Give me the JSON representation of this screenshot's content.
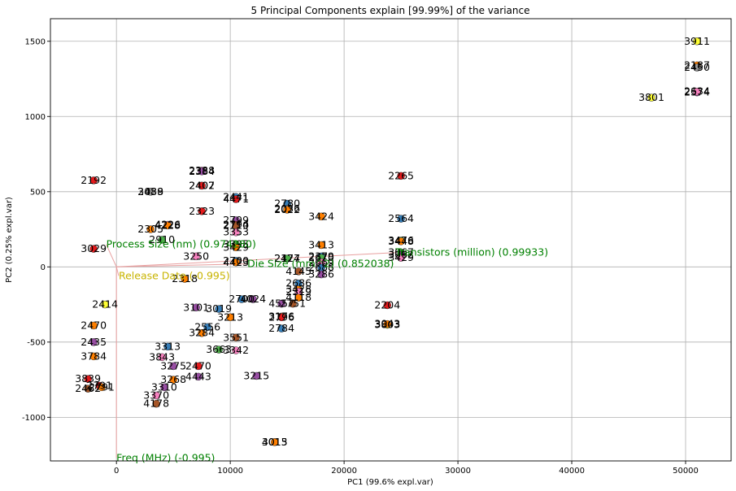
{
  "chart_data": {
    "type": "scatter",
    "title": "5 Principal Components explain [99.99%] of the variance",
    "xlabel": "PC1 (99.6% expl.var)",
    "ylabel": "PC2 (0.25% expl.var)",
    "xlim": [
      -5800,
      54000
    ],
    "ylim": [
      -1290,
      1650
    ],
    "xticks": [
      0,
      10000,
      20000,
      30000,
      40000,
      50000
    ],
    "yticks": [
      -1000,
      -500,
      0,
      500,
      1000,
      1500
    ],
    "grid": true,
    "legend": "none",
    "colors": {
      "red": "#e41a1c",
      "blue": "#377eb8",
      "green": "#4daf4a",
      "purple": "#984ea3",
      "orange": "#ff7f00",
      "yellow": "#ffff33",
      "brown": "#a65628",
      "pink": "#f781bf",
      "gray": "#999999",
      "vector": "#e8a0a0",
      "vector_label_green": "#008000",
      "vector_label_yellow": "#c8b400"
    },
    "points": [
      {
        "x": 51000,
        "y": 1500,
        "label": "3911",
        "color": "yellow"
      },
      {
        "x": 51000,
        "y": 1340,
        "label": "2187",
        "color": "orange"
      },
      {
        "x": 51000,
        "y": 1325,
        "label": "2450",
        "color": "gray"
      },
      {
        "x": 47000,
        "y": 1125,
        "label": "3801",
        "color": "yellow"
      },
      {
        "x": 51000,
        "y": 1160,
        "label": "2574",
        "color": "purple"
      },
      {
        "x": 51000,
        "y": 1165,
        "label": "2634",
        "color": "pink"
      },
      {
        "x": 25000,
        "y": 605,
        "label": "2265",
        "color": "red"
      },
      {
        "x": 25000,
        "y": 320,
        "label": "2564",
        "color": "blue"
      },
      {
        "x": 25000,
        "y": 175,
        "label": "3476",
        "color": "green"
      },
      {
        "x": 25000,
        "y": 170,
        "label": "3448",
        "color": "orange"
      },
      {
        "x": 25000,
        "y": 95,
        "label": "3067",
        "color": "green"
      },
      {
        "x": 25000,
        "y": 80,
        "label": "3062",
        "color": "purple"
      },
      {
        "x": 25000,
        "y": 60,
        "label": "3429",
        "color": "pink"
      },
      {
        "x": 23800,
        "y": -255,
        "label": "2204",
        "color": "red"
      },
      {
        "x": 23800,
        "y": -385,
        "label": "3803",
        "color": "yellow"
      },
      {
        "x": 23800,
        "y": -380,
        "label": "3043",
        "color": "orange"
      },
      {
        "x": 18000,
        "y": 335,
        "label": "3424",
        "color": "orange"
      },
      {
        "x": 18000,
        "y": 145,
        "label": "3413",
        "color": "orange"
      },
      {
        "x": 18000,
        "y": 70,
        "label": "2379",
        "color": "blue"
      },
      {
        "x": 18000,
        "y": 60,
        "label": "2670",
        "color": "green"
      },
      {
        "x": 18000,
        "y": 30,
        "label": "2669",
        "color": "pink"
      },
      {
        "x": 18000,
        "y": -5,
        "label": "2688",
        "color": "blue"
      },
      {
        "x": 18000,
        "y": -50,
        "label": "3286",
        "color": "purple"
      },
      {
        "x": 15000,
        "y": 420,
        "label": "2780",
        "color": "blue"
      },
      {
        "x": 15000,
        "y": 385,
        "label": "2036",
        "color": "gray"
      },
      {
        "x": 15000,
        "y": 380,
        "label": "2022",
        "color": "orange"
      },
      {
        "x": 15000,
        "y": 55,
        "label": "2127",
        "color": "blue"
      },
      {
        "x": 15000,
        "y": 55,
        "label": "2474",
        "color": "green"
      },
      {
        "x": 16000,
        "y": -30,
        "label": "4145",
        "color": "brown"
      },
      {
        "x": 16000,
        "y": -110,
        "label": "2686",
        "color": "blue"
      },
      {
        "x": 16000,
        "y": -150,
        "label": "3428",
        "color": "orange"
      },
      {
        "x": 16000,
        "y": -165,
        "label": "2319",
        "color": "pink"
      },
      {
        "x": 16000,
        "y": -205,
        "label": "4118",
        "color": "orange"
      },
      {
        "x": 15500,
        "y": -245,
        "label": "2751",
        "color": "brown"
      },
      {
        "x": 14500,
        "y": -245,
        "label": "4557",
        "color": "purple"
      },
      {
        "x": 14500,
        "y": -330,
        "label": "3176",
        "color": "brown"
      },
      {
        "x": 14500,
        "y": -335,
        "label": "2796",
        "color": "red"
      },
      {
        "x": 14500,
        "y": -410,
        "label": "2784",
        "color": "blue"
      },
      {
        "x": 12300,
        "y": -725,
        "label": "3215",
        "color": "purple"
      },
      {
        "x": 13900,
        "y": -1165,
        "label": "4015",
        "color": "brown"
      },
      {
        "x": 13900,
        "y": -1165,
        "label": "3013",
        "color": "orange"
      },
      {
        "x": 10500,
        "y": 465,
        "label": "2441",
        "color": "blue"
      },
      {
        "x": 10500,
        "y": 450,
        "label": "4471",
        "color": "red"
      },
      {
        "x": 10500,
        "y": 310,
        "label": "2799",
        "color": "purple"
      },
      {
        "x": 10500,
        "y": 280,
        "label": "2794",
        "color": "red"
      },
      {
        "x": 10500,
        "y": 275,
        "label": "2710",
        "color": "brown"
      },
      {
        "x": 10500,
        "y": 230,
        "label": "3353",
        "color": "pink"
      },
      {
        "x": 10500,
        "y": 150,
        "label": "3395",
        "color": "green"
      },
      {
        "x": 10500,
        "y": 130,
        "label": "3429",
        "color": "orange"
      },
      {
        "x": 10500,
        "y": 40,
        "label": "2700",
        "color": "blue"
      },
      {
        "x": 10500,
        "y": 30,
        "label": "4423",
        "color": "orange"
      },
      {
        "x": 7500,
        "y": 640,
        "label": "2388",
        "color": "pink"
      },
      {
        "x": 7500,
        "y": 635,
        "label": "2384",
        "color": "purple"
      },
      {
        "x": 7500,
        "y": 540,
        "label": "2402",
        "color": "gray"
      },
      {
        "x": 7500,
        "y": 540,
        "label": "2407",
        "color": "red"
      },
      {
        "x": 7500,
        "y": 370,
        "label": "2323",
        "color": "red"
      },
      {
        "x": 3000,
        "y": 500,
        "label": "3438",
        "color": "orange"
      },
      {
        "x": 3000,
        "y": 500,
        "label": "2089",
        "color": "gray"
      },
      {
        "x": 4500,
        "y": 280,
        "label": "4226",
        "color": "pink"
      },
      {
        "x": 4500,
        "y": 275,
        "label": "4228",
        "color": "orange"
      },
      {
        "x": 4000,
        "y": 180,
        "label": "2910",
        "color": "green"
      },
      {
        "x": 3000,
        "y": 250,
        "label": "2305",
        "color": "orange"
      },
      {
        "x": -2000,
        "y": 575,
        "label": "2192",
        "color": "red"
      },
      {
        "x": 11000,
        "y": -215,
        "label": "2700",
        "color": "blue"
      },
      {
        "x": 12000,
        "y": -215,
        "label": "4024",
        "color": "purple"
      },
      {
        "x": 10000,
        "y": -335,
        "label": "3213",
        "color": "orange"
      },
      {
        "x": 8000,
        "y": -400,
        "label": "2556",
        "color": "blue"
      },
      {
        "x": 7500,
        "y": -440,
        "label": "3284",
        "color": "orange"
      },
      {
        "x": 9000,
        "y": -550,
        "label": "3663",
        "color": "green"
      },
      {
        "x": 10500,
        "y": -555,
        "label": "3342",
        "color": "pink"
      },
      {
        "x": 10500,
        "y": -470,
        "label": "3551",
        "color": "brown"
      },
      {
        "x": 7200,
        "y": -660,
        "label": "2470",
        "color": "red"
      },
      {
        "x": 7200,
        "y": -730,
        "label": "4443",
        "color": "purple"
      },
      {
        "x": 4200,
        "y": -800,
        "label": "3310",
        "color": "purple"
      },
      {
        "x": 3500,
        "y": -855,
        "label": "3370",
        "color": "pink"
      },
      {
        "x": 3500,
        "y": -910,
        "label": "4178",
        "color": "brown"
      },
      {
        "x": 5000,
        "y": -660,
        "label": "3275",
        "color": "purple"
      },
      {
        "x": 5000,
        "y": -750,
        "label": "3268",
        "color": "orange"
      },
      {
        "x": -1500,
        "y": -790,
        "label": "2791",
        "color": "red"
      },
      {
        "x": -1300,
        "y": -800,
        "label": "2791",
        "color": "orange"
      },
      {
        "x": -2500,
        "y": -810,
        "label": "2462",
        "color": "brown"
      },
      {
        "x": -2500,
        "y": -745,
        "label": "3839",
        "color": "red"
      },
      {
        "x": -2000,
        "y": -595,
        "label": "3784",
        "color": "orange"
      },
      {
        "x": -2000,
        "y": -500,
        "label": "2435",
        "color": "purple"
      },
      {
        "x": 4000,
        "y": -600,
        "label": "3843",
        "color": "pink"
      },
      {
        "x": 4500,
        "y": -530,
        "label": "3313",
        "color": "blue"
      },
      {
        "x": -2000,
        "y": 120,
        "label": "3029",
        "color": "red"
      },
      {
        "x": 7000,
        "y": 70,
        "label": "3250",
        "color": "pink"
      },
      {
        "x": 6000,
        "y": -80,
        "label": "2318",
        "color": "orange"
      },
      {
        "x": 7000,
        "y": -270,
        "label": "3101",
        "color": "purple"
      },
      {
        "x": 9000,
        "y": -280,
        "label": "3019",
        "color": "blue"
      },
      {
        "x": -1000,
        "y": -250,
        "label": "2414",
        "color": "yellow"
      },
      {
        "x": -2000,
        "y": -390,
        "label": "2470",
        "color": "orange"
      }
    ],
    "vectors": [
      {
        "label": "Transistors (million) (0.99933)",
        "x": 24500,
        "y": 95,
        "color": "vector_label_green"
      },
      {
        "label": "Die Size (mm^2) (0.852038)",
        "x": 11500,
        "y": 20,
        "color": "vector_label_green"
      },
      {
        "label": "Process Size (nm) (0.974280)",
        "x": -900,
        "y": 150,
        "color": "vector_label_green"
      },
      {
        "label": "Release Date (-0.995)",
        "x": 200,
        "y": -60,
        "color": "vector_label_yellow"
      },
      {
        "label": "Freq (MHz) (-0.995)",
        "x": 0,
        "y": -1270,
        "color": "vector_label_green"
      }
    ]
  }
}
